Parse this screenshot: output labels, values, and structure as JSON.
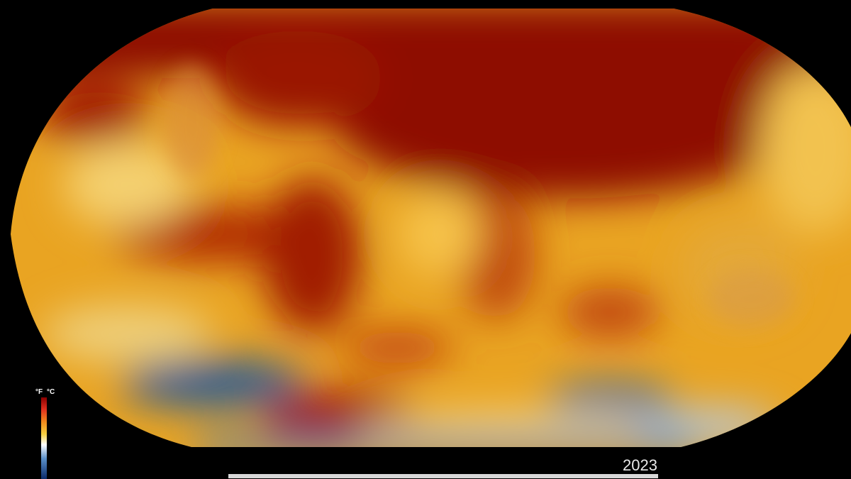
{
  "map": {
    "colorbar": {
      "unit_f": "°F",
      "unit_c": "°C"
    },
    "timeline": {
      "year": "2023"
    }
  }
}
